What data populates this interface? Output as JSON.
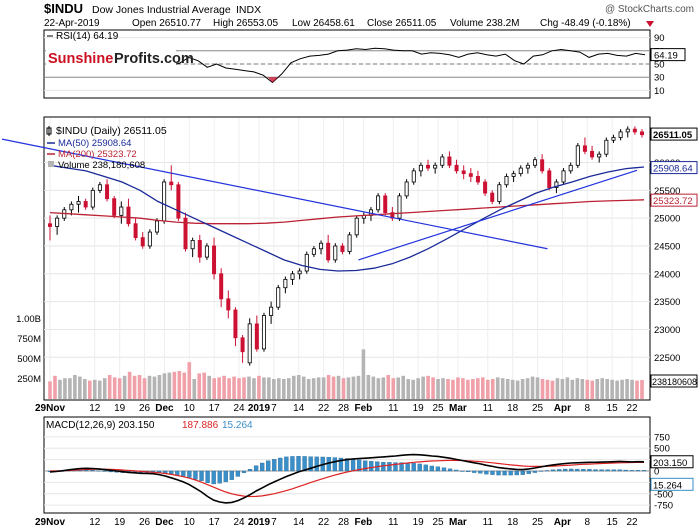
{
  "colors": {
    "up": "#ffffff",
    "down": "#cc1133",
    "candle_edge": "#000000",
    "ma50": "#1a2a99",
    "ma200": "#bb2233",
    "trendline": "#2233dd",
    "volume_gray": "#b4b4b4",
    "volume_red": "#f0a0a8",
    "macd_line": "#000000",
    "signal_line": "#dd2222",
    "histogram": "#3a8fc8",
    "price_marker": "#000000",
    "logo_red": "#cc1122"
  },
  "header": {
    "symbol": "$INDU",
    "name": "Dow Jones Industrial Average",
    "exchange": "INDX",
    "copyright": "@ StockCharts.com",
    "date": "22-Apr-2019",
    "open": "Open 26510.77",
    "high": "High 26553.05",
    "low": "Low 26458.61",
    "close": "Close 26511.05",
    "volume": "Volume 238.2M",
    "chg": "Chg -48.49 (-0.18%)"
  },
  "logo": {
    "part1": "Sunshine",
    "part2": "Profits.com"
  },
  "rsi": {
    "label": "RSI(14) 64.19",
    "value_tag": "64.19",
    "ticks": [
      "90",
      "70",
      "50",
      "30",
      "10"
    ],
    "tick_values": [
      90,
      70,
      50,
      30,
      10
    ],
    "levels": [
      70,
      30
    ],
    "range": [
      0,
      100
    ],
    "values": [
      56,
      55,
      60,
      63,
      58,
      60,
      62,
      55,
      52,
      52,
      55,
      58,
      57,
      48,
      51,
      60,
      55,
      45,
      50,
      44,
      42,
      40,
      38,
      33,
      22,
      35,
      52,
      58,
      62,
      63,
      65,
      70,
      71,
      73,
      72,
      74,
      73,
      71,
      70,
      70,
      65,
      67,
      66,
      64,
      60,
      65,
      67,
      64,
      62,
      65,
      55,
      50,
      62,
      64,
      70,
      72,
      70,
      68,
      60,
      65,
      66,
      63,
      62,
      66,
      64
    ]
  },
  "price": {
    "legend_title": "$INDU (Daily) 26511.05",
    "ma50_label": "MA(50) 25908.64",
    "ma200_label": "MA(200) 25323.72",
    "volume_label": "Volume 238,180,608",
    "last_tag": "26511.05",
    "ma50_tag": "25908.64",
    "ma200_tag": "25323.72",
    "ticks": [
      "26000",
      "25500",
      "25000",
      "24500",
      "24000",
      "23500",
      "23000",
      "22500"
    ],
    "tick_values": [
      26000,
      25500,
      25000,
      24500,
      24000,
      23500,
      23000,
      22500
    ],
    "range": [
      21750,
      26800
    ],
    "volume_ticks": [
      "1.00B",
      "750M",
      "500M",
      "250M"
    ],
    "volume_tick_values": [
      1000,
      750,
      500,
      250
    ],
    "volume_range": [
      0,
      1300
    ],
    "volume_tag": "238180608"
  },
  "macd": {
    "label": "MACD(12,26,9) 203.150, 187.886, 15.264",
    "label_macd": "MACD(12,26,9) 203.150",
    "label_signal": "187.886",
    "label_hist": "15.264",
    "macd_tag": "203.150",
    "hist_tag": "15.264",
    "ticks": [
      "750",
      "500",
      "250",
      "0",
      "-250",
      "-500",
      "-750"
    ],
    "tick_values": [
      750,
      500,
      250,
      0,
      -250,
      -500,
      -750
    ],
    "range": [
      -900,
      900
    ]
  },
  "x_axis": {
    "labels": [
      "29Nov",
      "12",
      "19",
      "26",
      "Dec",
      "10",
      "17",
      "24",
      "2019",
      "7",
      "14",
      "22",
      "28",
      "Feb",
      "11",
      "19",
      "25",
      "Mar",
      "11",
      "18",
      "25",
      "Apr",
      "8",
      "15",
      "22"
    ],
    "label_index": [
      0,
      9,
      14,
      19,
      23,
      28,
      33,
      38,
      42,
      45,
      50,
      55,
      59,
      63,
      69,
      74,
      78,
      82,
      88,
      93,
      98,
      103,
      108,
      113,
      117
    ],
    "bold": [
      "29Nov",
      "Dec",
      "2019",
      "Feb",
      "Mar",
      "Apr"
    ]
  },
  "chart_data": {
    "type": "candlestick",
    "title": "$INDU Dow Jones Industrial Average INDX",
    "period": "Daily",
    "ylim": [
      21750,
      26800
    ],
    "ohlc": [
      [
        24900,
        25050,
        24600,
        24850
      ],
      [
        24850,
        25050,
        24700,
        25000
      ],
      [
        25000,
        25200,
        24950,
        25150
      ],
      [
        25150,
        25300,
        25050,
        25250
      ],
      [
        25250,
        25400,
        25100,
        25300
      ],
      [
        25300,
        25350,
        25150,
        25200
      ],
      [
        25200,
        25550,
        25150,
        25500
      ],
      [
        25500,
        25650,
        25450,
        25600
      ],
      [
        25600,
        25700,
        25300,
        25350
      ],
      [
        25350,
        25400,
        25000,
        25050
      ],
      [
        25050,
        25300,
        24900,
        25200
      ],
      [
        25200,
        25350,
        24850,
        24900
      ],
      [
        24900,
        25000,
        24600,
        24650
      ],
      [
        24650,
        24750,
        24450,
        24500
      ],
      [
        24500,
        24800,
        24450,
        24750
      ],
      [
        24750,
        25000,
        24700,
        24950
      ],
      [
        24950,
        25700,
        24900,
        25650
      ],
      [
        25650,
        25950,
        25500,
        25600
      ],
      [
        25600,
        25650,
        24950,
        25000
      ],
      [
        25000,
        25100,
        24400,
        24450
      ],
      [
        24450,
        24650,
        24300,
        24600
      ],
      [
        24600,
        24700,
        24200,
        24300
      ],
      [
        24300,
        24550,
        24250,
        24500
      ],
      [
        24500,
        24650,
        23900,
        24000
      ],
      [
        24000,
        24100,
        23400,
        23550
      ],
      [
        23550,
        23700,
        23200,
        23350
      ],
      [
        23350,
        23400,
        22700,
        22850
      ],
      [
        22850,
        22900,
        22400,
        22600
      ],
      [
        22400,
        23200,
        22350,
        23100
      ],
      [
        23100,
        23250,
        22600,
        22650
      ],
      [
        22650,
        23300,
        22600,
        23250
      ],
      [
        23250,
        23500,
        23100,
        23400
      ],
      [
        23400,
        23800,
        23350,
        23750
      ],
      [
        23750,
        23950,
        23650,
        23900
      ],
      [
        23900,
        24050,
        23800,
        24000
      ],
      [
        24000,
        24100,
        23900,
        24050
      ],
      [
        24050,
        24400,
        24000,
        24350
      ],
      [
        24350,
        24500,
        24300,
        24450
      ],
      [
        24450,
        24600,
        24350,
        24550
      ],
      [
        24550,
        24700,
        24200,
        24250
      ],
      [
        24250,
        24550,
        24200,
        24500
      ],
      [
        24500,
        24550,
        24350,
        24400
      ],
      [
        24400,
        24750,
        24350,
        24700
      ],
      [
        24700,
        25050,
        24650,
        25000
      ],
      [
        25000,
        25100,
        24900,
        25050
      ],
      [
        25050,
        25200,
        24950,
        25150
      ],
      [
        25150,
        25450,
        25100,
        25400
      ],
      [
        25400,
        25450,
        25050,
        25100
      ],
      [
        25100,
        25200,
        24950,
        25000
      ],
      [
        25000,
        25450,
        24950,
        25400
      ],
      [
        25400,
        25700,
        25350,
        25650
      ],
      [
        25650,
        25900,
        25600,
        25850
      ],
      [
        25850,
        26000,
        25750,
        25950
      ],
      [
        25950,
        26050,
        25850,
        25900
      ],
      [
        25900,
        26000,
        25800,
        25950
      ],
      [
        25950,
        26150,
        25900,
        26100
      ],
      [
        26100,
        26200,
        25900,
        25950
      ],
      [
        25950,
        26050,
        25800,
        25850
      ],
      [
        25850,
        25950,
        25700,
        25800
      ],
      [
        25800,
        25900,
        25650,
        25750
      ],
      [
        25750,
        25850,
        25600,
        25650
      ],
      [
        25650,
        25700,
        25400,
        25450
      ],
      [
        25450,
        25500,
        25250,
        25300
      ],
      [
        25300,
        25650,
        25250,
        25600
      ],
      [
        25600,
        25800,
        25550,
        25750
      ],
      [
        25750,
        25850,
        25650,
        25800
      ],
      [
        25800,
        25950,
        25750,
        25900
      ],
      [
        25900,
        26000,
        25800,
        25950
      ],
      [
        25950,
        26100,
        25900,
        26050
      ],
      [
        26050,
        26150,
        25800,
        25850
      ],
      [
        25850,
        25900,
        25500,
        25550
      ],
      [
        25550,
        25700,
        25450,
        25650
      ],
      [
        25650,
        25900,
        25600,
        25850
      ],
      [
        25850,
        26000,
        25800,
        25950
      ],
      [
        25950,
        26350,
        25900,
        26300
      ],
      [
        26300,
        26450,
        26150,
        26200
      ],
      [
        26200,
        26300,
        26050,
        26100
      ],
      [
        26100,
        26200,
        26000,
        26150
      ],
      [
        26150,
        26450,
        26100,
        26400
      ],
      [
        26400,
        26500,
        26350,
        26450
      ],
      [
        26450,
        26600,
        26400,
        26550
      ],
      [
        26550,
        26650,
        26450,
        26600
      ],
      [
        26600,
        26650,
        26500,
        26550
      ],
      [
        26550,
        26600,
        26450,
        26500
      ]
    ],
    "ma50": [
      25950,
      25900,
      25850,
      25750,
      25650,
      25500,
      25300,
      25150,
      25000,
      24850,
      24700,
      24550,
      24400,
      24250,
      24150,
      24080,
      24050,
      24060,
      24100,
      24180,
      24300,
      24450,
      24620,
      24800,
      24980,
      25150,
      25300,
      25450,
      25560,
      25650,
      25750,
      25830,
      25890,
      25920
    ],
    "ma200": [
      25100,
      25080,
      25060,
      25040,
      25020,
      25000,
      24960,
      24930,
      24910,
      24900,
      24900,
      24900,
      24910,
      24930,
      24960,
      24990,
      25020,
      25040,
      25060,
      25080,
      25100,
      25120,
      25140,
      25160,
      25180,
      25200,
      25220,
      25240,
      25260,
      25280,
      25300,
      25310,
      25320,
      25330
    ],
    "trendline_down": [
      [
        0,
        26200
      ],
      [
        100,
        24450
      ]
    ],
    "trendline_up": [
      [
        62,
        24250
      ],
      [
        118,
        25860
      ]
    ],
    "volume_millions": [
      220,
      290,
      240,
      260,
      260,
      300,
      280,
      250,
      230,
      240,
      230,
      260,
      300,
      270,
      260,
      290,
      340,
      290,
      300,
      260,
      290,
      280,
      300,
      320,
      330,
      340,
      350,
      330,
      460,
      250,
      320,
      330,
      290,
      260,
      270,
      290,
      260,
      280,
      260,
      270,
      280,
      260,
      290,
      270,
      270,
      250,
      260,
      250,
      260,
      290,
      300,
      280,
      250,
      260,
      270,
      270,
      300,
      280,
      290,
      260,
      270,
      280,
      290,
      620,
      300,
      280,
      260,
      270,
      300,
      260,
      270,
      290,
      250,
      240,
      260,
      280,
      290,
      270,
      250,
      260,
      250,
      240,
      270,
      260,
      240,
      250,
      260,
      270,
      240,
      250,
      270,
      260,
      250,
      240,
      230,
      250,
      260,
      280,
      270,
      250,
      240,
      230,
      260,
      250,
      270,
      240,
      260,
      250,
      240,
      230,
      250,
      260,
      250,
      240,
      230,
      240,
      250,
      240,
      230,
      238
    ],
    "macd": [
      -20,
      -10,
      5,
      25,
      40,
      55,
      60,
      55,
      45,
      30,
      15,
      0,
      -15,
      -30,
      -40,
      -50,
      -55,
      -60,
      -80,
      -110,
      -150,
      -190,
      -240,
      -300,
      -380,
      -460,
      -560,
      -640,
      -680,
      -700,
      -690,
      -650,
      -590,
      -520,
      -440,
      -370,
      -300,
      -240,
      -180,
      -120,
      -70,
      -20,
      20,
      60,
      100,
      140,
      175,
      205,
      230,
      250,
      265,
      275,
      280,
      290,
      300,
      310,
      320,
      330,
      345,
      355,
      360,
      355,
      345,
      330,
      320,
      300,
      280,
      255,
      230,
      205,
      180,
      155,
      125,
      100,
      75,
      60,
      45,
      35,
      30,
      45,
      65,
      90,
      115,
      135,
      150,
      165,
      175,
      180,
      185,
      190,
      190,
      195,
      200,
      205,
      210,
      205,
      200,
      205,
      203
    ],
    "signal": [
      0,
      2,
      5,
      10,
      18,
      26,
      33,
      38,
      40,
      39,
      36,
      30,
      22,
      12,
      2,
      -8,
      -18,
      -28,
      -40,
      -55,
      -75,
      -98,
      -125,
      -158,
      -198,
      -245,
      -300,
      -355,
      -410,
      -460,
      -500,
      -530,
      -550,
      -560,
      -558,
      -546,
      -525,
      -498,
      -466,
      -430,
      -390,
      -345,
      -300,
      -255,
      -210,
      -168,
      -128,
      -90,
      -55,
      -25,
      5,
      30,
      55,
      75,
      95,
      115,
      130,
      145,
      160,
      175,
      190,
      200,
      210,
      220,
      225,
      230,
      233,
      233,
      230,
      224,
      216,
      206,
      194,
      180,
      165,
      150,
      135,
      122,
      110,
      104,
      100,
      100,
      103,
      108,
      115,
      122,
      130,
      138,
      146,
      152,
      158,
      164,
      170,
      176,
      180,
      184,
      186,
      188,
      188
    ]
  }
}
